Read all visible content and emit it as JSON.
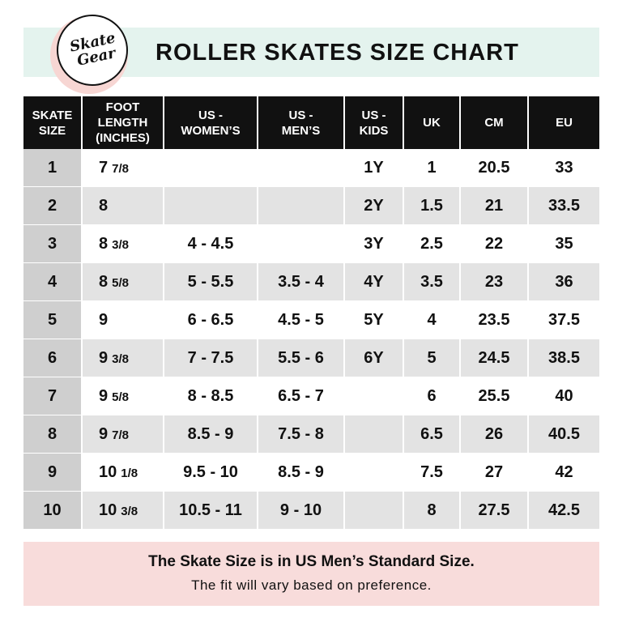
{
  "header": {
    "title": "ROLLER SKATES SIZE CHART",
    "logo_line1": "Skate",
    "logo_line2": "Gear"
  },
  "table": {
    "columns": [
      "SKATE\nSIZE",
      "FOOT\nLENGTH\n(INCHES)",
      "US -\nWOMEN’S",
      "US -\nMEN’S",
      "US -\nKIDS",
      "UK",
      "CM",
      "EU"
    ],
    "rows": [
      {
        "skate": "1",
        "foot_whole": "7",
        "foot_frac": "7/8",
        "women": "",
        "men": "",
        "kids": "1Y",
        "uk": "1",
        "cm": "20.5",
        "eu": "33"
      },
      {
        "skate": "2",
        "foot_whole": "8",
        "foot_frac": "",
        "women": "",
        "men": "",
        "kids": "2Y",
        "uk": "1.5",
        "cm": "21",
        "eu": "33.5"
      },
      {
        "skate": "3",
        "foot_whole": "8",
        "foot_frac": "3/8",
        "women": "4 - 4.5",
        "men": "",
        "kids": "3Y",
        "uk": "2.5",
        "cm": "22",
        "eu": "35"
      },
      {
        "skate": "4",
        "foot_whole": "8",
        "foot_frac": "5/8",
        "women": "5 - 5.5",
        "men": "3.5 - 4",
        "kids": "4Y",
        "uk": "3.5",
        "cm": "23",
        "eu": "36"
      },
      {
        "skate": "5",
        "foot_whole": "9",
        "foot_frac": "",
        "women": "6 - 6.5",
        "men": "4.5 - 5",
        "kids": "5Y",
        "uk": "4",
        "cm": "23.5",
        "eu": "37.5"
      },
      {
        "skate": "6",
        "foot_whole": "9",
        "foot_frac": "3/8",
        "women": "7 - 7.5",
        "men": "5.5 - 6",
        "kids": "6Y",
        "uk": "5",
        "cm": "24.5",
        "eu": "38.5"
      },
      {
        "skate": "7",
        "foot_whole": "9",
        "foot_frac": "5/8",
        "women": "8 - 8.5",
        "men": "6.5 - 7",
        "kids": "",
        "uk": "6",
        "cm": "25.5",
        "eu": "40"
      },
      {
        "skate": "8",
        "foot_whole": "9",
        "foot_frac": "7/8",
        "women": "8.5 - 9",
        "men": "7.5 - 8",
        "kids": "",
        "uk": "6.5",
        "cm": "26",
        "eu": "40.5"
      },
      {
        "skate": "9",
        "foot_whole": "10",
        "foot_frac": "1/8",
        "women": "9.5 - 10",
        "men": "8.5 - 9",
        "kids": "",
        "uk": "7.5",
        "cm": "27",
        "eu": "42"
      },
      {
        "skate": "10",
        "foot_whole": "10",
        "foot_frac": "3/8",
        "women": "10.5 - 11",
        "men": "9 - 10",
        "kids": "",
        "uk": "8",
        "cm": "27.5",
        "eu": "42.5"
      }
    ]
  },
  "footer": {
    "main": "The Skate Size is in US Men’s Standard Size.",
    "sub": "The fit will vary based on preference."
  },
  "colors": {
    "header_band": "#e4f3ee",
    "footer_band": "#f8dcdb",
    "table_header": "#111111",
    "skate_col": "#cfcfcf",
    "stripe": "#e3e3e3"
  }
}
